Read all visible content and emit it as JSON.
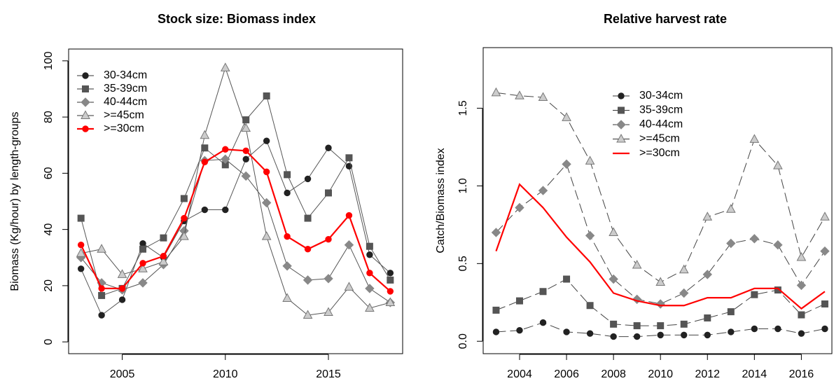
{
  "chart_data": [
    {
      "type": "line",
      "title": "Stock size: Biomass index",
      "y_label": "Biomass (Kg/hour) by length-groups",
      "x": [
        2003,
        2004,
        2005,
        2006,
        2007,
        2008,
        2009,
        2010,
        2011,
        2012,
        2013,
        2014,
        2015,
        2016,
        2017,
        2018
      ],
      "xlim": [
        2002.4,
        2018.6
      ],
      "xticks": [
        2005,
        2010,
        2015
      ],
      "ylim": [
        -4.2,
        104.2
      ],
      "yticks": [
        0,
        20,
        40,
        60,
        80,
        100
      ],
      "legend": "top-left",
      "series": [
        {
          "name": "30-34cm",
          "color": "#222222",
          "marker": "circle",
          "linestyle": "solid",
          "values": [
            26,
            9.5,
            15,
            35,
            30,
            43,
            47,
            47,
            65,
            71.5,
            53,
            58,
            69,
            62.5,
            31,
            24.5
          ]
        },
        {
          "name": "35-39cm",
          "color": "#555555",
          "marker": "square",
          "linestyle": "solid",
          "values": [
            44,
            16.5,
            19,
            33,
            37,
            51,
            69,
            63,
            79,
            87.5,
            59.5,
            44,
            53,
            65.5,
            34,
            22
          ]
        },
        {
          "name": "40-44cm",
          "color": "#888888",
          "marker": "diamond",
          "linestyle": "solid",
          "values": [
            30,
            21,
            18.5,
            21,
            27.5,
            39.5,
            64.5,
            65,
            59,
            49.5,
            27,
            22,
            22.5,
            34.5,
            19,
            14
          ]
        },
        {
          "name": ">=45cm",
          "color": "#cccccc",
          "marker": "triangle",
          "linestyle": "solid",
          "values": [
            31.5,
            33,
            24,
            26,
            28.5,
            37.5,
            73.5,
            97.5,
            76,
            37.5,
            15.5,
            9.5,
            10.5,
            19.5,
            12,
            14
          ]
        },
        {
          "name": ">=30cm",
          "color": "#ff0000",
          "marker": "circle",
          "linestyle": "solid",
          "values": [
            34.5,
            19,
            19,
            28,
            30.5,
            44,
            64,
            68.5,
            68,
            60.5,
            37.5,
            33,
            36.5,
            45,
            24.5,
            18
          ]
        }
      ]
    },
    {
      "type": "line",
      "title": "Relative harvest rate",
      "y_label": "Catch/Biomass index",
      "x": [
        2003,
        2004,
        2005,
        2006,
        2007,
        2008,
        2009,
        2010,
        2011,
        2012,
        2013,
        2014,
        2015,
        2016,
        2017
      ],
      "xlim": [
        2002.45,
        2017.3
      ],
      "xticks": [
        2004,
        2006,
        2008,
        2010,
        2012,
        2014,
        2016
      ],
      "ylim": [
        -0.08,
        1.89
      ],
      "yticks": [
        {
          "value": 0,
          "label": "0.0"
        },
        0.5,
        {
          "value": 1,
          "label": "1.0"
        },
        1.5
      ],
      "legend": "top",
      "series": [
        {
          "name": "30-34cm",
          "color": "#222222",
          "marker": "circle",
          "linestyle": "dashed",
          "values": [
            0.06,
            0.07,
            0.12,
            0.06,
            0.05,
            0.03,
            0.03,
            0.04,
            0.04,
            0.04,
            0.06,
            0.08,
            0.08,
            0.05,
            0.08
          ]
        },
        {
          "name": "35-39cm",
          "color": "#555555",
          "marker": "square",
          "linestyle": "dashed",
          "values": [
            0.2,
            0.26,
            0.32,
            0.4,
            0.23,
            0.11,
            0.1,
            0.1,
            0.11,
            0.15,
            0.19,
            0.3,
            0.33,
            0.17,
            0.24
          ]
        },
        {
          "name": "40-44cm",
          "color": "#888888",
          "marker": "diamond",
          "linestyle": "dashed",
          "values": [
            0.7,
            0.86,
            0.97,
            1.14,
            0.68,
            0.4,
            0.27,
            0.24,
            0.31,
            0.43,
            0.63,
            0.66,
            0.62,
            0.36,
            0.58
          ]
        },
        {
          "name": ">=45cm",
          "color": "#cccccc",
          "marker": "triangle",
          "linestyle": "dashed",
          "values": [
            1.6,
            1.58,
            1.57,
            1.44,
            1.16,
            0.7,
            0.49,
            0.38,
            0.46,
            0.8,
            0.85,
            1.3,
            1.13,
            0.54,
            0.8
          ]
        },
        {
          "name": ">=30cm",
          "color": "#ff0000",
          "marker": "none",
          "linestyle": "solid",
          "values": [
            0.58,
            1.01,
            0.86,
            0.67,
            0.51,
            0.31,
            0.26,
            0.23,
            0.23,
            0.28,
            0.28,
            0.34,
            0.34,
            0.21,
            0.32
          ]
        }
      ]
    }
  ]
}
